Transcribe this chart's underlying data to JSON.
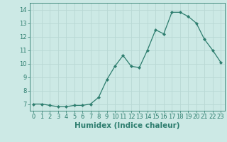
{
  "x": [
    0,
    1,
    2,
    3,
    4,
    5,
    6,
    7,
    8,
    9,
    10,
    11,
    12,
    13,
    14,
    15,
    16,
    17,
    18,
    19,
    20,
    21,
    22,
    23
  ],
  "y": [
    7.0,
    7.0,
    6.9,
    6.8,
    6.8,
    6.9,
    6.9,
    7.0,
    7.5,
    8.8,
    9.8,
    10.6,
    9.8,
    9.7,
    11.0,
    12.5,
    12.2,
    13.8,
    13.8,
    13.5,
    13.0,
    11.8,
    11.0,
    10.1
  ],
  "xlabel": "Humidex (Indice chaleur)",
  "line_color": "#2d7d6e",
  "marker": "D",
  "marker_size": 2.2,
  "bg_color": "#cce9e5",
  "grid_color": "#b8d8d4",
  "tick_color": "#2d7d6e",
  "label_color": "#2d7d6e",
  "spine_color": "#2d7d6e",
  "xlim": [
    -0.5,
    23.5
  ],
  "ylim": [
    6.5,
    14.5
  ],
  "yticks": [
    7,
    8,
    9,
    10,
    11,
    12,
    13,
    14
  ],
  "xticks": [
    0,
    1,
    2,
    3,
    4,
    5,
    6,
    7,
    8,
    9,
    10,
    11,
    12,
    13,
    14,
    15,
    16,
    17,
    18,
    19,
    20,
    21,
    22,
    23
  ],
  "tick_fontsize": 6.0,
  "label_fontsize": 7.5,
  "linewidth": 0.9
}
